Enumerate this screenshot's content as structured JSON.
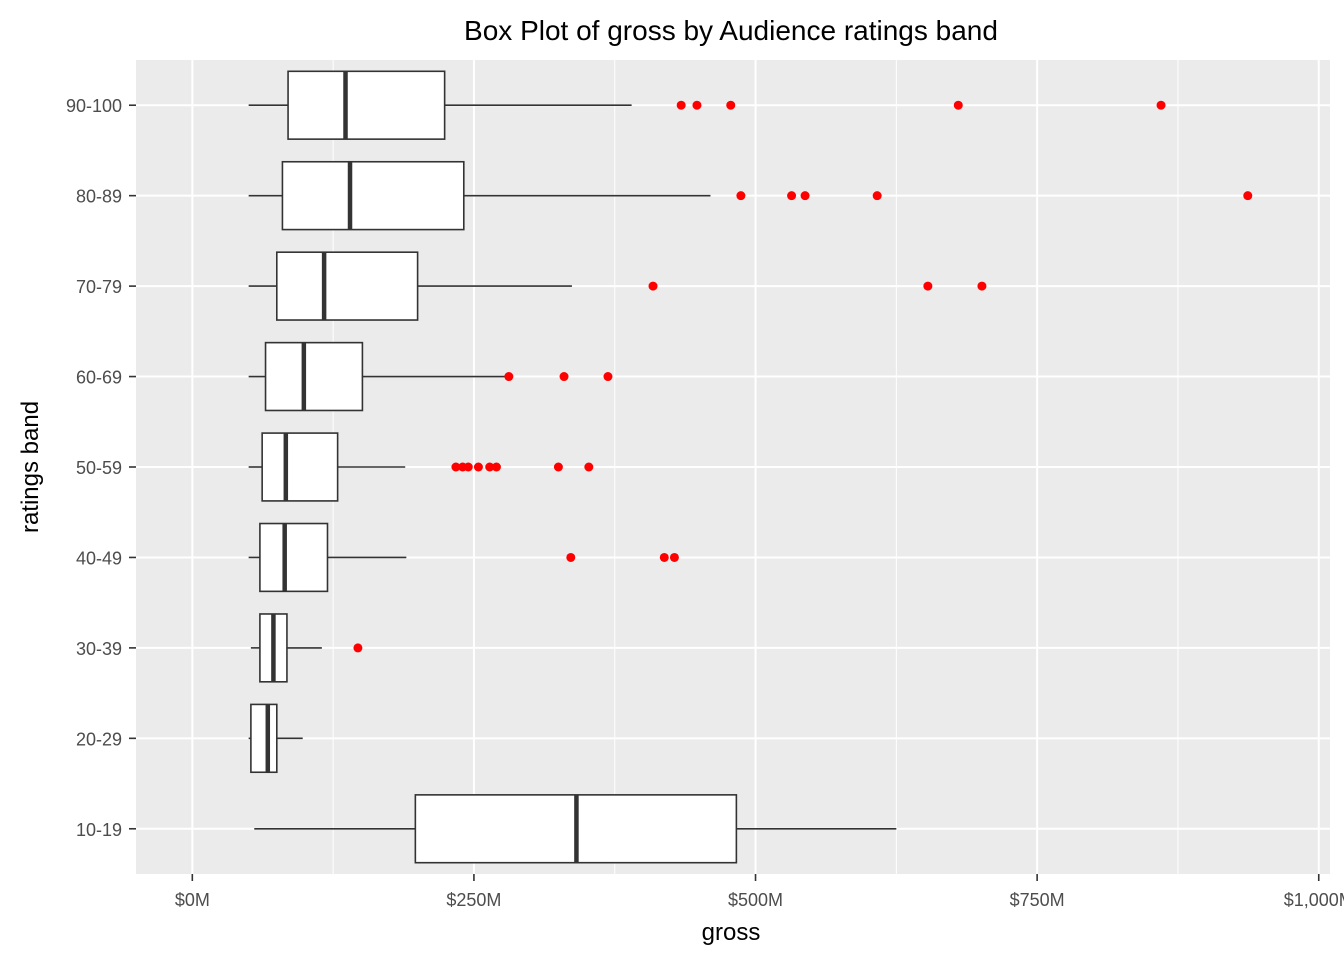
{
  "chart_data": {
    "type": "box",
    "orientation": "horizontal",
    "title": "Box Plot of gross by Audience ratings band",
    "xlabel": "gross",
    "ylabel": "ratings band",
    "xlim": [
      -50,
      1010
    ],
    "x_ticks": [
      0,
      250,
      500,
      750,
      1000
    ],
    "x_tick_labels": [
      "$0M",
      "$250M",
      "$500M",
      "$750M",
      "$1,000M"
    ],
    "x_minor_ticks": [
      125,
      375,
      625,
      875
    ],
    "categories": [
      "10-19",
      "20-29",
      "30-39",
      "40-49",
      "50-59",
      "60-69",
      "70-79",
      "80-89",
      "90-100"
    ],
    "boxes": [
      {
        "category": "10-19",
        "whisker_low": 55,
        "q1": 198,
        "median": 341,
        "q3": 483,
        "whisker_high": 625,
        "outliers": []
      },
      {
        "category": "20-29",
        "whisker_low": 50,
        "q1": 52,
        "median": 67,
        "q3": 75,
        "whisker_high": 98,
        "outliers": []
      },
      {
        "category": "30-39",
        "whisker_low": 52,
        "q1": 60,
        "median": 72,
        "q3": 84,
        "whisker_high": 115,
        "outliers": [
          147
        ]
      },
      {
        "category": "40-49",
        "whisker_low": 50,
        "q1": 60,
        "median": 82,
        "q3": 120,
        "whisker_high": 190,
        "outliers": [
          336,
          419,
          428
        ]
      },
      {
        "category": "50-59",
        "whisker_low": 50,
        "q1": 62,
        "median": 83,
        "q3": 129,
        "whisker_high": 189,
        "outliers": [
          234,
          240,
          245,
          254,
          264,
          270,
          325,
          352
        ]
      },
      {
        "category": "60-69",
        "whisker_low": 50,
        "q1": 65,
        "median": 99,
        "q3": 151,
        "whisker_high": 280,
        "outliers": [
          281,
          330,
          369
        ]
      },
      {
        "category": "70-79",
        "whisker_low": 50,
        "q1": 75,
        "median": 117,
        "q3": 200,
        "whisker_high": 337,
        "outliers": [
          409,
          653,
          701
        ]
      },
      {
        "category": "80-89",
        "whisker_low": 50,
        "q1": 80,
        "median": 140,
        "q3": 241,
        "whisker_high": 460,
        "outliers": [
          487,
          532,
          544,
          608,
          937
        ]
      },
      {
        "category": "90-100",
        "whisker_low": 50,
        "q1": 85,
        "median": 136,
        "q3": 224,
        "whisker_high": 390,
        "outliers": [
          434,
          448,
          478,
          680,
          860
        ]
      }
    ],
    "outlier_color": "#ff0000",
    "box_fill": "#ffffff",
    "box_stroke": "#333333",
    "panel_background": "#ebebeb",
    "grid_color": "#ffffff",
    "grid": true,
    "legend": "none"
  }
}
